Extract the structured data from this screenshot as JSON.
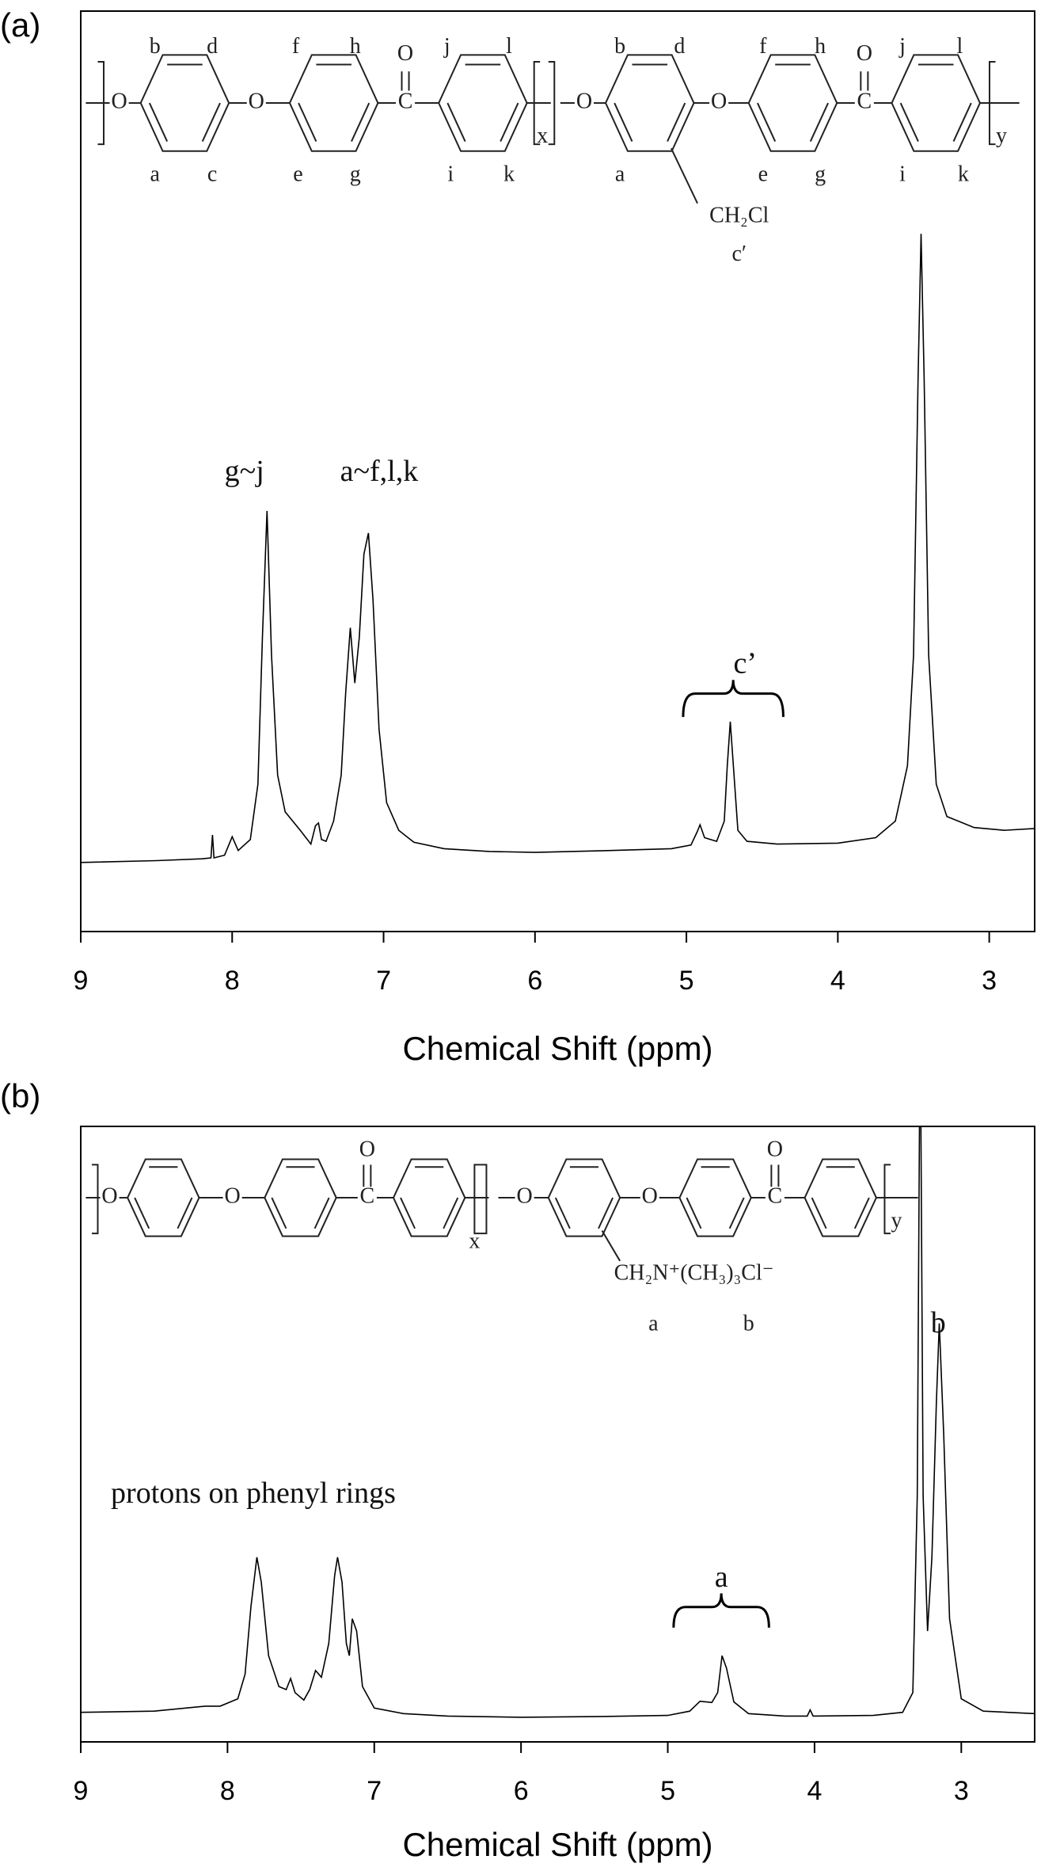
{
  "chart_data": [
    {
      "type": "line",
      "panel_label": "(a)",
      "xlabel": "Chemical Shift (ppm)",
      "xlim": [
        9,
        2.7
      ],
      "ylim": [
        0,
        100
      ],
      "xticks": [
        9,
        8,
        7,
        6,
        5,
        4,
        3
      ],
      "color": "#000000",
      "x": [
        9.0,
        8.5,
        8.2,
        8.14,
        8.13,
        8.12,
        8.05,
        8.0,
        7.96,
        7.88,
        7.83,
        7.8,
        7.77,
        7.74,
        7.7,
        7.65,
        7.55,
        7.48,
        7.45,
        7.43,
        7.41,
        7.38,
        7.33,
        7.28,
        7.25,
        7.22,
        7.19,
        7.16,
        7.13,
        7.1,
        7.07,
        7.03,
        6.98,
        6.9,
        6.8,
        6.6,
        6.3,
        6.0,
        5.5,
        5.1,
        4.97,
        4.93,
        4.91,
        4.88,
        4.8,
        4.75,
        4.73,
        4.71,
        4.69,
        4.66,
        4.6,
        4.4,
        4.0,
        3.75,
        3.62,
        3.58,
        3.54,
        3.5,
        3.47,
        3.45,
        3.43,
        3.4,
        3.35,
        3.28,
        3.1,
        2.9,
        2.7
      ],
      "values": [
        7.5,
        7.7,
        7.9,
        8.0,
        10.5,
        8.0,
        8.3,
        10.3,
        8.8,
        10,
        16,
        32,
        45.7,
        30,
        17,
        13,
        11,
        9.5,
        11.5,
        11.8,
        10,
        9.8,
        12,
        17,
        26,
        33,
        27,
        32,
        41,
        43.3,
        36,
        22,
        14,
        11,
        9.7,
        9,
        8.7,
        8.6,
        8.8,
        9,
        9.4,
        10.8,
        11.6,
        10.2,
        9.8,
        12,
        18,
        22.8,
        18,
        11,
        9.8,
        9.5,
        9.6,
        10.2,
        12,
        15,
        18,
        30,
        60,
        75.8,
        60,
        30,
        16,
        12.5,
        11.3,
        11,
        11.2
      ],
      "annotations": [
        "g~j",
        "a~f,l,k",
        "c’"
      ],
      "structure_labels": [
        "b",
        "d",
        "a",
        "c",
        "f",
        "h",
        "e",
        "g",
        "j",
        "l",
        "i",
        "k",
        "O",
        "O",
        "C",
        "O",
        "x",
        "b",
        "d",
        "a",
        "f",
        "h",
        "e",
        "g",
        "j",
        "l",
        "i",
        "k",
        "O",
        "O",
        "C",
        "O",
        "y",
        "CH₂Cl",
        "c′"
      ]
    },
    {
      "type": "line",
      "panel_label": "(b)",
      "xlabel": "Chemical Shift (ppm)",
      "xlim": [
        9,
        2.5
      ],
      "ylim": [
        0,
        100
      ],
      "xticks": [
        9,
        8,
        7,
        6,
        5,
        4,
        3
      ],
      "color": "#000000",
      "x": [
        9.0,
        8.5,
        8.15,
        8.05,
        7.97,
        7.93,
        7.88,
        7.84,
        7.8,
        7.77,
        7.72,
        7.65,
        7.6,
        7.57,
        7.54,
        7.48,
        7.44,
        7.4,
        7.36,
        7.31,
        7.27,
        7.25,
        7.22,
        7.19,
        7.17,
        7.15,
        7.12,
        7.08,
        7.0,
        6.8,
        6.5,
        6.0,
        5.5,
        5.0,
        4.85,
        4.78,
        4.7,
        4.66,
        4.63,
        4.6,
        4.55,
        4.45,
        4.2,
        4.05,
        4.03,
        4.01,
        3.6,
        3.4,
        3.33,
        3.3,
        3.28,
        3.26,
        3.23,
        3.2,
        3.17,
        3.15,
        3.12,
        3.08,
        3.0,
        2.85,
        2.5
      ],
      "values": [
        4.8,
        5.0,
        5.8,
        5.8,
        6.6,
        7,
        11,
        22,
        30,
        26,
        14,
        9,
        8.5,
        10.3,
        8,
        6.8,
        8.5,
        11.6,
        10.5,
        16,
        27,
        30,
        26,
        16,
        14,
        20,
        18,
        9,
        5.5,
        4.6,
        4.2,
        4.0,
        4.1,
        4.3,
        5,
        6.6,
        6.4,
        8,
        14,
        12,
        6.5,
        4.6,
        4.2,
        4.2,
        5.2,
        4.2,
        4.3,
        4.8,
        8,
        40,
        120,
        40,
        18,
        30,
        55,
        68,
        50,
        20,
        7,
        5,
        4.6
      ],
      "annotations": [
        "protons on phenyl rings",
        "a",
        "b"
      ],
      "structure_labels": [
        "O",
        "O",
        "C",
        "O",
        "x",
        "O",
        "O",
        "C",
        "O",
        "y",
        "CH₂N⁺(CH₃)₃Cl⁻",
        "a",
        "b"
      ]
    }
  ]
}
